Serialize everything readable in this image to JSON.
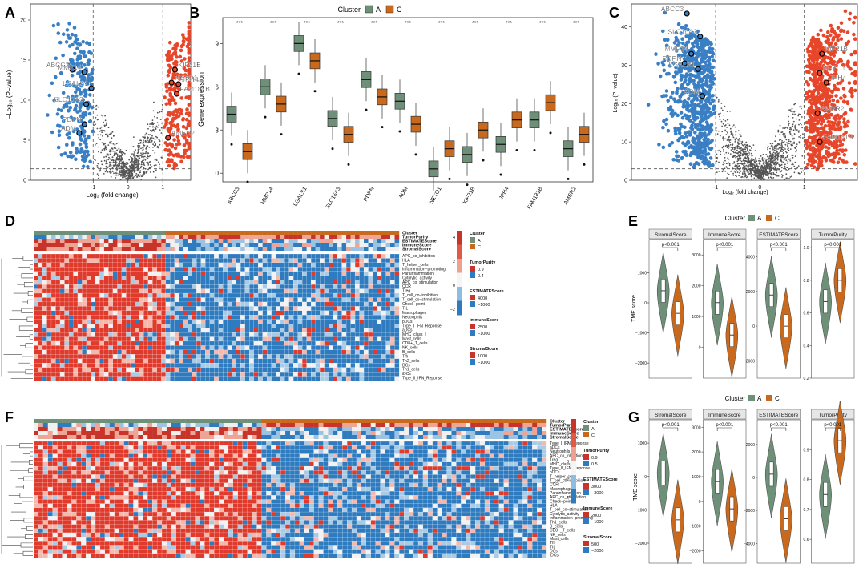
{
  "figure": {
    "colors": {
      "clusterA": "#6e8f78",
      "clusterC": "#c8691d",
      "up": "#e8462a",
      "down": "#3a7fc4",
      "ns": "#555555",
      "heatHigh": "#e03a2c",
      "heatLow": "#2f7bbf",
      "heatMid": "#f4f4f4"
    },
    "panel_labels": [
      "A",
      "B",
      "C",
      "D",
      "E",
      "F",
      "G"
    ],
    "volcano_A": {
      "ylabel": "−Log₁₀ (P−value)",
      "xlabel": "Log₂ (fold change)",
      "xticks": [
        "-1",
        "0",
        "1"
      ],
      "yticks": [
        "0",
        "5",
        "10",
        "15",
        "20"
      ],
      "genes": [
        {
          "name": "ABCC3",
          "lfc": -1.6,
          "p": 13.8,
          "dir": "down"
        },
        {
          "name": "MMP14",
          "lfc": -1.25,
          "p": 13.5,
          "dir": "down"
        },
        {
          "name": "LGALS1",
          "lfc": -1.05,
          "p": 11.5,
          "dir": "down"
        },
        {
          "name": "SLC16A3",
          "lfc": -1.2,
          "p": 9.5,
          "dir": "down"
        },
        {
          "name": "PDPN",
          "lfc": -1.25,
          "p": 7.0,
          "dir": "down"
        },
        {
          "name": "ADM",
          "lfc": -1.4,
          "p": 5.9,
          "dir": "down"
        },
        {
          "name": "KIF21B",
          "lfc": 1.35,
          "p": 13.8,
          "dir": "up"
        },
        {
          "name": "NETO1",
          "lfc": 1.25,
          "p": 12.2,
          "dir": "up"
        },
        {
          "name": "JPH4",
          "lfc": 1.45,
          "p": 12.0,
          "dir": "up"
        },
        {
          "name": "FAM181B",
          "lfc": 1.4,
          "p": 10.8,
          "dir": "up"
        },
        {
          "name": "AMER2",
          "lfc": 1.15,
          "p": 5.3,
          "dir": "up"
        }
      ]
    },
    "box_B": {
      "type": "bar",
      "legend_title": "Cluster",
      "legend_items": [
        "A",
        "C"
      ],
      "ylabel": "Gene expression",
      "yticks": [
        "0",
        "3",
        "6",
        "9"
      ],
      "significance": "***",
      "categories": [
        "ABCC3",
        "MMP14",
        "LGALS1",
        "SLC16A3",
        "PDPN",
        "ADM",
        "NETO1",
        "KIF21B",
        "JPH4",
        "FAM181B",
        "AMER2"
      ],
      "series": [
        {
          "name": "A",
          "medians": [
            4.1,
            6.0,
            9.0,
            3.8,
            6.5,
            5.0,
            0.3,
            1.3,
            2.0,
            3.7,
            1.7
          ]
        },
        {
          "name": "C",
          "medians": [
            1.5,
            4.8,
            7.8,
            2.7,
            5.3,
            3.4,
            1.7,
            3.0,
            3.7,
            4.9,
            2.7
          ]
        }
      ]
    },
    "volcano_C": {
      "ylabel": "−Log₁₀ (P−value)",
      "xlabel": "Log₂ (fold change)",
      "xticks": [
        "-1",
        "0",
        "1"
      ],
      "yticks": [
        "0",
        "10",
        "20",
        "30",
        "40"
      ],
      "genes": [
        {
          "name": "ABCC3",
          "lfc": -1.65,
          "p": 43.5,
          "dir": "down"
        },
        {
          "name": "SLC16A3",
          "lfc": -1.35,
          "p": 37.5,
          "dir": "down"
        },
        {
          "name": "MMP14",
          "lfc": -1.55,
          "p": 33.0,
          "dir": "down"
        },
        {
          "name": "PDPN",
          "lfc": -1.7,
          "p": 30.5,
          "dir": "down"
        },
        {
          "name": "LGALS1",
          "lfc": -1.4,
          "p": 29.0,
          "dir": "down"
        },
        {
          "name": "ADM",
          "lfc": -1.3,
          "p": 22.0,
          "dir": "down"
        },
        {
          "name": "KIF21B",
          "lfc": 1.4,
          "p": 33.0,
          "dir": "up"
        },
        {
          "name": "NETO1",
          "lfc": 1.35,
          "p": 28.0,
          "dir": "up"
        },
        {
          "name": "JPH4",
          "lfc": 1.5,
          "p": 25.5,
          "dir": "up"
        },
        {
          "name": "AMER2",
          "lfc": 1.3,
          "p": 17.5,
          "dir": "up"
        },
        {
          "name": "FAM181B",
          "lfc": 1.35,
          "p": 10.0,
          "dir": "up"
        }
      ]
    },
    "heatmap_D": {
      "annotation_rows": [
        "Cluster",
        "TumorPurity",
        "ESTIMATEScore",
        "ImmuneScore",
        "StromalScore"
      ],
      "rows": [
        "APC_co_inhibition",
        "HLA",
        "T_helper_cells",
        "Inflammation−promoting",
        "Parainflammation",
        "Cytolytic_activity",
        "APC_co_stimulation",
        "CCR",
        "Treg",
        "T_cell_co−inhibition",
        "T_cell_co−stimulation",
        "Check−point",
        "TIL",
        "Macrophages",
        "Neutrophils",
        "pDCs",
        "Type_I_IFN_Reponse",
        "aDCs",
        "MHC_class_I",
        "Mast_cells",
        "CD8+_T_cells",
        "NK_cells",
        "B_cells",
        "Tfh",
        "Th2_cells",
        "DCs",
        "Th1_cells",
        "iDCs",
        "Type_II_IFN_Reponse"
      ],
      "scale_ticks": [
        "4",
        "2",
        "0",
        "−2"
      ],
      "legends": [
        {
          "title": "Cluster",
          "items": [
            "A",
            "C"
          ]
        },
        {
          "title": "TumorPurity",
          "items": [
            "0.9",
            "0.4"
          ]
        },
        {
          "title": "ESTIMATEScore",
          "items": [
            "4000",
            "−1000"
          ]
        },
        {
          "title": "ImmuneScore",
          "items": [
            "2500",
            "−1000"
          ]
        },
        {
          "title": "StromalScore",
          "items": [
            "1000",
            "−1000"
          ]
        }
      ]
    },
    "violin_E": {
      "legend_title": "Cluster",
      "legend_items": [
        "A",
        "C"
      ],
      "ylabel": "TME score",
      "pvalue": "p<0.001",
      "panels": [
        {
          "title": "StromalScore",
          "yticks": [
            "−2000",
            "−1000",
            "0",
            "1000"
          ],
          "ymin": -2500,
          "ymax": 2100,
          "medA": 400,
          "medC": -350
        },
        {
          "title": "ImmuneScore",
          "yticks": [
            "0",
            "1000",
            "2000",
            "3000"
          ],
          "ymin": -1000,
          "ymax": 3500,
          "medA": 1450,
          "medC": 400
        },
        {
          "title": "ESTIMATEScore",
          "yticks": [
            "−2000",
            "0",
            "2000",
            "4000"
          ],
          "ymin": -3000,
          "ymax": 5000,
          "medA": 1800,
          "medC": 0
        },
        {
          "title": "TumorPurity",
          "yticks": [
            "0.2",
            "0.4",
            "0.6",
            "0.8",
            "1.0"
          ],
          "ymin": 0.2,
          "ymax": 1.05,
          "medA": 0.67,
          "medC": 0.8
        }
      ]
    },
    "heatmap_F": {
      "annotation_rows": [
        "Cluster",
        "TumorPurity",
        "ESTIMATEScore",
        "ImmuneScore",
        "StromalScore"
      ],
      "rows": [
        "Type_I_IFN_Reponse",
        "aDCs",
        "Neutrophils",
        "APC_co_inhibition",
        "Treg",
        "MHC_class_I",
        "Type_II_IFN_Reponse",
        "pDCs",
        "T_helper_cells",
        "T_cell_co−inhibition",
        "CCR",
        "Macrophages",
        "Parainflammation",
        "APC_co_stimulation",
        "Check−point",
        "HLA",
        "T_cell_co−stimulation",
        "Cytolytic_activity",
        "Inflammation−promoting",
        "Th1_cells",
        "B_cells",
        "CD8+_T_cells",
        "NK_cells",
        "Mast_cells",
        "Tfh",
        "TIL",
        "DCs",
        "iDCs"
      ],
      "scale_ticks": [
        "4",
        "2",
        "0",
        "−2",
        "−4"
      ],
      "legends": [
        {
          "title": "Cluster",
          "items": [
            "A",
            "C"
          ]
        },
        {
          "title": "TumorPurity",
          "items": [
            "0.9",
            "0.5"
          ]
        },
        {
          "title": "ESTIMATEScore",
          "items": [
            "3000",
            "−3000"
          ]
        },
        {
          "title": "ImmuneScore",
          "items": [
            "2000",
            "−1000"
          ]
        },
        {
          "title": "StromalScore",
          "items": [
            "500",
            "−2000"
          ]
        }
      ]
    },
    "violin_G": {
      "legend_title": "Cluster",
      "legend_items": [
        "A",
        "C"
      ],
      "ylabel": "TME score",
      "pvalue": "p<0.001",
      "panels": [
        {
          "title": "StromalScore",
          "yticks": [
            "−2000",
            "−1000",
            "0",
            "1000"
          ],
          "ymin": -2600,
          "ymax": 1700,
          "medA": 100,
          "medC": -1300
        },
        {
          "title": "ImmuneScore",
          "yticks": [
            "−2000",
            "−1000",
            "0",
            "1000",
            "2000",
            "3000"
          ],
          "ymin": -2500,
          "ymax": 3300,
          "medA": 800,
          "medC": -300
        },
        {
          "title": "ESTIMATEScore",
          "yticks": [
            "−4000",
            "−2000",
            "0",
            "2000"
          ],
          "ymin": -5200,
          "ymax": 3500,
          "medA": 200,
          "medC": -2500
        },
        {
          "title": "TumorPurity",
          "yticks": [
            "0.6",
            "0.7",
            "0.8",
            "0.9"
          ],
          "ymin": 0.52,
          "ymax": 1.0,
          "medA": 0.75,
          "medC": 0.93
        }
      ]
    }
  }
}
